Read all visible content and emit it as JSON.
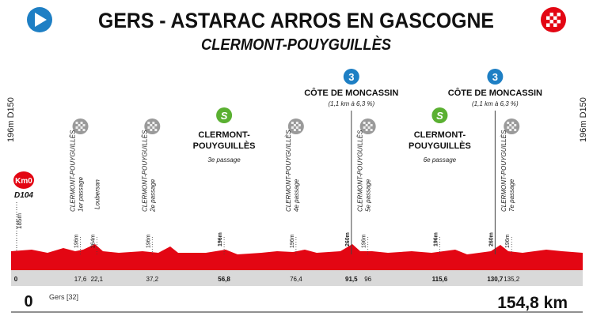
{
  "header": {
    "title": "GERS - ASTARAC ARROS EN GASCOGNE",
    "subtitle": "CLERMONT-POUYGUILLÈS"
  },
  "side": {
    "left": "196m D150",
    "right": "196m D150"
  },
  "start": {
    "badge": "Km0",
    "road": "D104",
    "altitude": "185m"
  },
  "profile": {
    "total": {
      "value": 154.8,
      "label": "154,8 km"
    },
    "origin": "0",
    "department": "Gers [32]",
    "start_km": {
      "value": 0,
      "label": "0"
    }
  },
  "markers": [
    {
      "km": {
        "value": 17.6,
        "label": "17,6"
      },
      "kind": "passage",
      "name": "CLERMONT-POUYGUILLÈS",
      "note": "1er passage",
      "altitude": "196m"
    },
    {
      "km": {
        "value": 22.1,
        "label": "22,1"
      },
      "kind": "place",
      "name": "Loubersan",
      "altitude": "264m"
    },
    {
      "km": {
        "value": 37.2,
        "label": "37,2"
      },
      "kind": "passage",
      "name": "CLERMONT-POUYGUILLÈS",
      "note": "2e passage",
      "altitude": "196m"
    },
    {
      "km": {
        "value": 56.8,
        "label": "56,8"
      },
      "kind": "sprint",
      "icon": "S",
      "name_lines": [
        "CLERMONT-",
        "POUYGUILLÈS"
      ],
      "note": "3e passage",
      "altitude": "196m"
    },
    {
      "km": {
        "value": 76.4,
        "label": "76,4"
      },
      "kind": "passage",
      "name": "CLERMONT-POUYGUILLÈS",
      "note": "4e passage",
      "altitude": "196m"
    },
    {
      "km": {
        "value": 91.5,
        "label": "91,5"
      },
      "kind": "climb",
      "icon": "3",
      "name": "CÔTE DE MONCASSIN",
      "note": "(1,1 km à 6,3 %)",
      "altitude": "260m"
    },
    {
      "km": {
        "value": 96,
        "label": "96"
      },
      "kind": "passage",
      "name": "CLERMONT-POUYGUILLÈS",
      "note": "5e passage",
      "altitude": "196m"
    },
    {
      "km": {
        "value": 115.6,
        "label": "115,6"
      },
      "kind": "sprint",
      "icon": "S",
      "name_lines": [
        "CLERMONT-",
        "POUYGUILLÈS"
      ],
      "note": "6e passage",
      "altitude": "196m"
    },
    {
      "km": {
        "value": 130.7,
        "label": "130,7"
      },
      "kind": "climb",
      "icon": "3",
      "name": "CÔTE DE MONCASSIN",
      "note": "(1,1 km à 6,3 %)",
      "altitude": "260m"
    },
    {
      "km": {
        "value": 135.2,
        "label": "135,2"
      },
      "kind": "passage",
      "name": "CLERMONT-POUYGUILLÈS",
      "note": "7e passage",
      "altitude": "196m"
    }
  ]
}
